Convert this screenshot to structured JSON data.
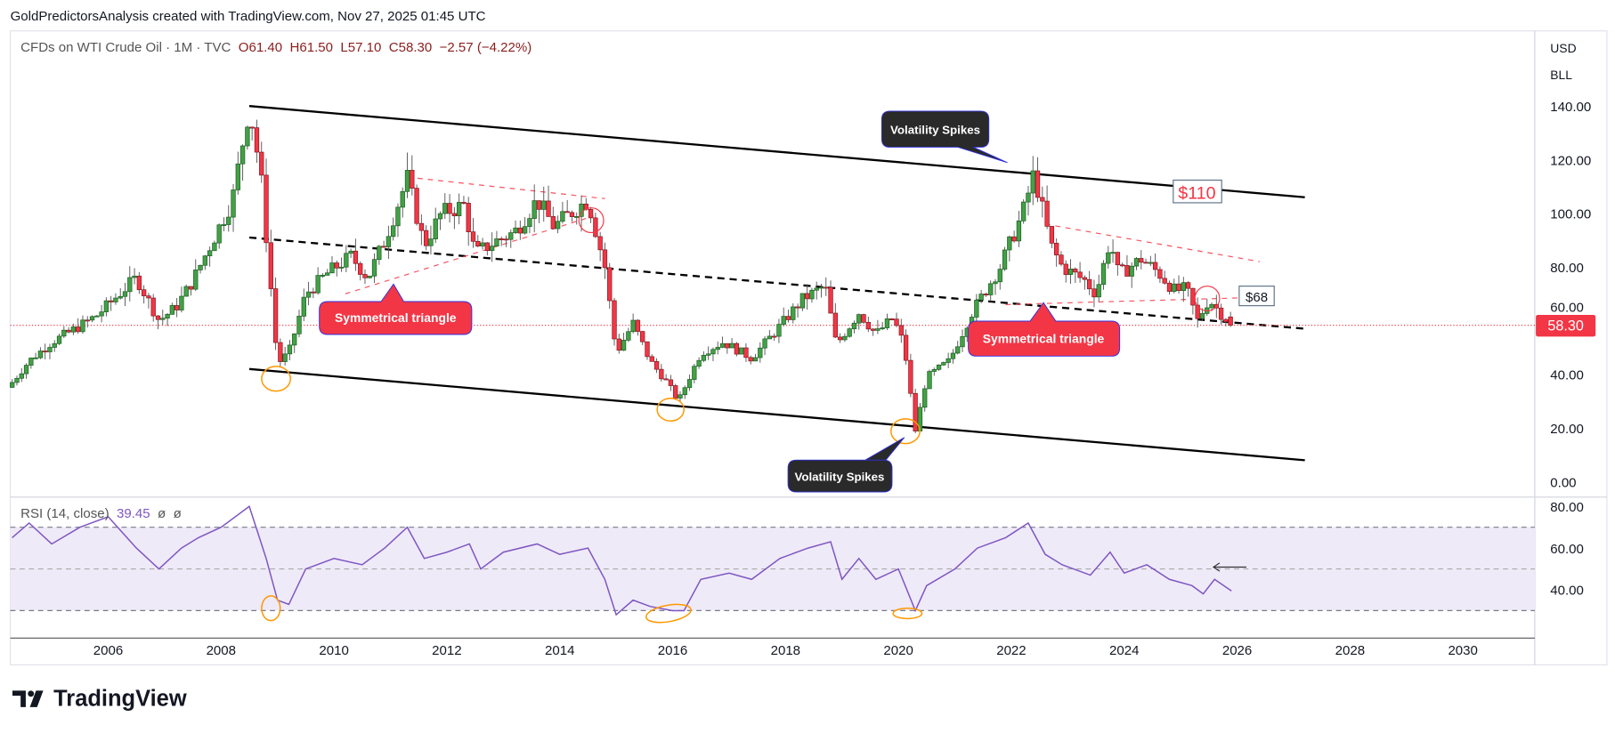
{
  "header": {
    "attribution": "GoldPredictorsAnalysis created with TradingView.com, Nov 27, 2025 01:45 UTC"
  },
  "legend": {
    "symbol": "CFDs on WTI Crude Oil · 1M · TVC",
    "open": "O61.40",
    "high": "H61.50",
    "low": "L57.10",
    "close": "C58.30",
    "change": "−2.57 (−4.22%)"
  },
  "axis": {
    "currency": "USD",
    "unit": "BLL",
    "last_price": "58.30"
  },
  "rsi_legend": {
    "label": "RSI (14, close)",
    "value": "39.45",
    "extra1": "ø",
    "extra2": "ø"
  },
  "logo": {
    "text": "TradingView"
  },
  "annotations": {
    "vol_spikes_top": "Volatility Spikes",
    "vol_spikes_bottom": "Volatility Spikes",
    "sym_tri_1": "Symmetrical triangle",
    "sym_tri_2": "Symmetrical triangle",
    "price_110": "$110",
    "price_68": "$68"
  },
  "colors": {
    "up": "#43a047",
    "down": "#f23645",
    "rsi": "#7e57c2",
    "rsi_band": "#efeaf8",
    "last_price_bg": "#f23645"
  },
  "chart_data": [
    {
      "type": "candlestick",
      "title": "CFDs on WTI Crude Oil · 1M · TVC",
      "ylabel": "USD",
      "ylim": [
        0,
        150
      ],
      "y_ticks": [
        "140.00",
        "120.00",
        "100.00",
        "80.00",
        "60.00",
        "40.00",
        "20.00",
        "0.00"
      ],
      "x_ticks": [
        "2006",
        "2008",
        "2010",
        "2012",
        "2014",
        "2016",
        "2018",
        "2020",
        "2022",
        "2024",
        "2026",
        "2028",
        "2030"
      ],
      "close_anchors": [
        [
          2004.3,
          37
        ],
        [
          2004.6,
          45
        ],
        [
          2005.0,
          52
        ],
        [
          2005.5,
          58
        ],
        [
          2005.8,
          62
        ],
        [
          2006.0,
          66
        ],
        [
          2006.5,
          76
        ],
        [
          2006.9,
          60
        ],
        [
          2007.2,
          65
        ],
        [
          2007.5,
          75
        ],
        [
          2007.9,
          92
        ],
        [
          2008.2,
          105
        ],
        [
          2008.5,
          140
        ],
        [
          2008.7,
          115
        ],
        [
          2008.9,
          68
        ],
        [
          2009.0,
          44
        ],
        [
          2009.2,
          48
        ],
        [
          2009.5,
          70
        ],
        [
          2009.9,
          78
        ],
        [
          2010.3,
          84
        ],
        [
          2010.6,
          76
        ],
        [
          2010.9,
          90
        ],
        [
          2011.3,
          113
        ],
        [
          2011.6,
          88
        ],
        [
          2011.9,
          100
        ],
        [
          2012.3,
          103
        ],
        [
          2012.5,
          85
        ],
        [
          2012.9,
          90
        ],
        [
          2013.2,
          93
        ],
        [
          2013.6,
          105
        ],
        [
          2013.9,
          95
        ],
        [
          2014.3,
          102
        ],
        [
          2014.5,
          105
        ],
        [
          2014.8,
          80
        ],
        [
          2015.0,
          48
        ],
        [
          2015.3,
          59
        ],
        [
          2015.6,
          45
        ],
        [
          2015.9,
          37
        ],
        [
          2016.1,
          30
        ],
        [
          2016.5,
          48
        ],
        [
          2016.9,
          52
        ],
        [
          2017.4,
          46
        ],
        [
          2017.9,
          58
        ],
        [
          2018.3,
          68
        ],
        [
          2018.7,
          73
        ],
        [
          2018.9,
          51
        ],
        [
          2019.3,
          63
        ],
        [
          2019.6,
          55
        ],
        [
          2019.9,
          61
        ],
        [
          2020.1,
          51
        ],
        [
          2020.3,
          19
        ],
        [
          2020.5,
          39
        ],
        [
          2020.9,
          45
        ],
        [
          2021.3,
          63
        ],
        [
          2021.8,
          80
        ],
        [
          2022.2,
          100
        ],
        [
          2022.4,
          115
        ],
        [
          2022.7,
          88
        ],
        [
          2022.9,
          80
        ],
        [
          2023.3,
          75
        ],
        [
          2023.5,
          70
        ],
        [
          2023.75,
          90
        ],
        [
          2023.9,
          77
        ],
        [
          2024.3,
          83
        ],
        [
          2024.6,
          78
        ],
        [
          2024.9,
          71
        ],
        [
          2025.1,
          72
        ],
        [
          2025.3,
          60
        ],
        [
          2025.5,
          68
        ],
        [
          2025.7,
          63
        ],
        [
          2025.9,
          58.3
        ]
      ],
      "last_bar": {
        "open": 61.4,
        "high": 61.5,
        "low": 57.1,
        "close": 58.3
      },
      "trendlines": [
        {
          "name": "upper-channel",
          "from": [
            2008.5,
            140
          ],
          "to": [
            2027.2,
            106
          ],
          "style": "solid",
          "color": "#000000"
        },
        {
          "name": "lower-channel",
          "from": [
            2008.5,
            42
          ],
          "to": [
            2027.2,
            8
          ],
          "style": "solid",
          "color": "#000000"
        },
        {
          "name": "mid-channel",
          "from": [
            2008.5,
            91
          ],
          "to": [
            2027.2,
            57
          ],
          "style": "dashed",
          "color": "#000000"
        },
        {
          "name": "triangle1-upper",
          "from": [
            2011.3,
            113.5
          ],
          "to": [
            2014.8,
            105.5
          ],
          "style": "dashed",
          "color": "#f7525f"
        },
        {
          "name": "triangle1-lower",
          "from": [
            2010.2,
            70
          ],
          "to": [
            2014.6,
            99
          ],
          "style": "dashed",
          "color": "#f7525f"
        },
        {
          "name": "triangle2-upper",
          "from": [
            2022.6,
            96
          ],
          "to": [
            2026.4,
            82
          ],
          "style": "dashed",
          "color": "#f7525f"
        },
        {
          "name": "triangle2-lower",
          "from": [
            2021.9,
            66
          ],
          "to": [
            2026.4,
            68.7
          ],
          "style": "dashed",
          "color": "#f7525f"
        }
      ]
    },
    {
      "type": "line",
      "title": "RSI (14, close)",
      "ylim": [
        20,
        85
      ],
      "y_ticks": [
        "80.00",
        "60.00",
        "40.00"
      ],
      "levels": [
        70,
        50,
        30
      ],
      "points": [
        [
          2004.3,
          65
        ],
        [
          2004.6,
          72
        ],
        [
          2005.0,
          62
        ],
        [
          2005.5,
          70
        ],
        [
          2006.0,
          75
        ],
        [
          2006.5,
          60
        ],
        [
          2006.9,
          50
        ],
        [
          2007.3,
          60
        ],
        [
          2007.6,
          65
        ],
        [
          2008.0,
          70
        ],
        [
          2008.5,
          80
        ],
        [
          2008.8,
          55
        ],
        [
          2009.0,
          35
        ],
        [
          2009.2,
          33
        ],
        [
          2009.5,
          50
        ],
        [
          2010.0,
          55
        ],
        [
          2010.5,
          52
        ],
        [
          2010.9,
          60
        ],
        [
          2011.3,
          70
        ],
        [
          2011.6,
          55
        ],
        [
          2012.0,
          58
        ],
        [
          2012.4,
          62
        ],
        [
          2012.6,
          50
        ],
        [
          2013.0,
          58
        ],
        [
          2013.6,
          62
        ],
        [
          2014.0,
          57
        ],
        [
          2014.5,
          60
        ],
        [
          2014.8,
          45
        ],
        [
          2015.0,
          28
        ],
        [
          2015.3,
          35
        ],
        [
          2015.6,
          32
        ],
        [
          2016.0,
          30
        ],
        [
          2016.2,
          30
        ],
        [
          2016.5,
          45
        ],
        [
          2017.0,
          48
        ],
        [
          2017.4,
          45
        ],
        [
          2017.9,
          55
        ],
        [
          2018.4,
          60
        ],
        [
          2018.8,
          63
        ],
        [
          2019.0,
          45
        ],
        [
          2019.3,
          55
        ],
        [
          2019.6,
          45
        ],
        [
          2020.0,
          50
        ],
        [
          2020.3,
          30
        ],
        [
          2020.5,
          42
        ],
        [
          2021.0,
          50
        ],
        [
          2021.4,
          60
        ],
        [
          2021.9,
          65
        ],
        [
          2022.3,
          72
        ],
        [
          2022.6,
          57
        ],
        [
          2022.9,
          52
        ],
        [
          2023.4,
          47
        ],
        [
          2023.75,
          58
        ],
        [
          2024.0,
          48
        ],
        [
          2024.4,
          52
        ],
        [
          2024.8,
          45
        ],
        [
          2025.2,
          42
        ],
        [
          2025.4,
          38
        ],
        [
          2025.6,
          45
        ],
        [
          2025.9,
          39.45
        ]
      ]
    }
  ]
}
